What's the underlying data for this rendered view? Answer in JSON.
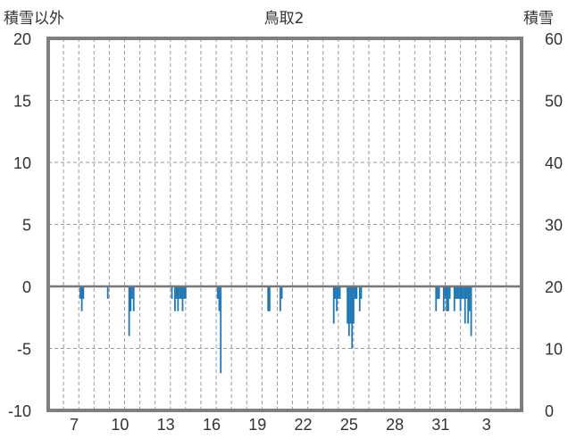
{
  "chart_data": {
    "type": "bar",
    "title": "鳥取2",
    "ylabel_left": "積雪以外",
    "ylabel_right": "積雪",
    "y_left_range": [
      -10,
      20
    ],
    "y_left_ticks": [
      "20",
      "15",
      "10",
      "5",
      "0",
      "-5",
      "-10"
    ],
    "y_right_range": [
      0,
      60
    ],
    "y_right_ticks": [
      "60",
      "50",
      "40",
      "30",
      "20",
      "10",
      "0"
    ],
    "x_start_day": 6,
    "x_days": 31,
    "x_tick_labels": [
      "7",
      "10",
      "13",
      "16",
      "19",
      "22",
      "25",
      "28",
      "31",
      "3"
    ],
    "x_tick_days": [
      7,
      10,
      13,
      16,
      19,
      22,
      25,
      28,
      31,
      34
    ],
    "grid": true,
    "bar_color": "#1f77b4",
    "series": [
      {
        "values_by_day": [
          [
            8.1,
            -1
          ],
          [
            8.2,
            -2
          ],
          [
            8.3,
            -1
          ],
          [
            9.9,
            -1
          ],
          [
            11.3,
            -4
          ],
          [
            11.4,
            -2
          ],
          [
            11.5,
            -1
          ],
          [
            11.6,
            -2
          ],
          [
            14.1,
            -1
          ],
          [
            14.3,
            -2
          ],
          [
            14.4,
            -1
          ],
          [
            14.5,
            -2
          ],
          [
            14.6,
            -1
          ],
          [
            14.7,
            -1
          ],
          [
            14.8,
            -2
          ],
          [
            14.9,
            -1
          ],
          [
            15.0,
            -1
          ],
          [
            17.1,
            -1
          ],
          [
            17.2,
            -2
          ],
          [
            17.3,
            -7
          ],
          [
            20.4,
            -2
          ],
          [
            20.5,
            -2
          ],
          [
            21.2,
            -2
          ],
          [
            21.3,
            -1
          ],
          [
            24.7,
            -3
          ],
          [
            24.8,
            -1
          ],
          [
            24.9,
            -2
          ],
          [
            25.0,
            -1
          ],
          [
            25.1,
            -1
          ],
          [
            25.6,
            -3
          ],
          [
            25.7,
            -4
          ],
          [
            25.8,
            -3
          ],
          [
            25.9,
            -5
          ],
          [
            26.0,
            -3
          ],
          [
            26.1,
            -1
          ],
          [
            26.2,
            -1
          ],
          [
            26.4,
            -2
          ],
          [
            26.5,
            -1
          ],
          [
            31.4,
            -2
          ],
          [
            31.5,
            -1
          ],
          [
            31.6,
            -1
          ],
          [
            31.9,
            -2
          ],
          [
            32.0,
            -1
          ],
          [
            32.1,
            -2
          ],
          [
            32.2,
            -2
          ],
          [
            32.3,
            -1
          ],
          [
            32.6,
            -2
          ],
          [
            32.7,
            -1
          ],
          [
            32.8,
            -1
          ],
          [
            32.9,
            -1
          ],
          [
            33.0,
            -2
          ],
          [
            33.1,
            -1
          ],
          [
            33.2,
            -1
          ],
          [
            33.3,
            -3
          ],
          [
            33.4,
            -1
          ],
          [
            33.5,
            -3
          ],
          [
            33.6,
            -2
          ],
          [
            33.7,
            -4
          ]
        ]
      }
    ]
  }
}
